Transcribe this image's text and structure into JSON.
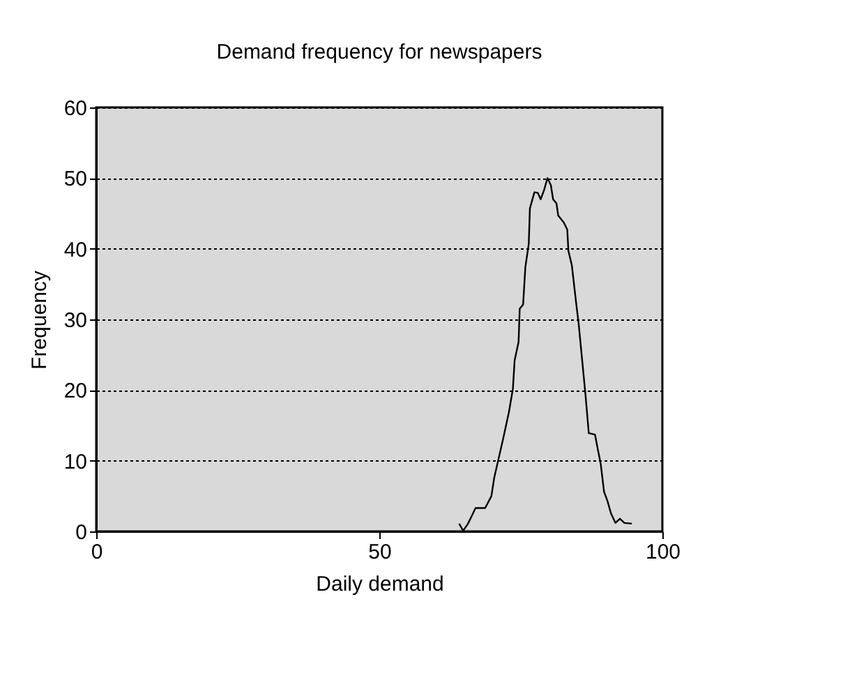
{
  "chart_data": {
    "type": "line",
    "title": "Demand frequency for newspapers",
    "xlabel": "Daily demand",
    "ylabel": "Frequency",
    "x": [
      64.1,
      64.8,
      65.6,
      66.4,
      67.0,
      68.7,
      69.8,
      70.3,
      70.9,
      71.9,
      72.9,
      73.6,
      73.9,
      74.6,
      74.8,
      75.4,
      75.8,
      76.4,
      76.6,
      77.4,
      78.0,
      78.5,
      79.1,
      79.7,
      80.3,
      80.7,
      81.3,
      81.6,
      82.6,
      83.2,
      83.4,
      84.0,
      84.8,
      85.2,
      86.0,
      86.4,
      87.0,
      88.1,
      88.6,
      89.1,
      89.7,
      90.3,
      90.9,
      91.7,
      92.5,
      93.3,
      94.6
    ],
    "series": [
      {
        "color": "#000000",
        "values": [
          1.1,
          0.1,
          1.0,
          2.3,
          3.3,
          3.3,
          5.0,
          7.6,
          9.7,
          13.2,
          16.9,
          20.2,
          24.2,
          26.8,
          31.5,
          32.1,
          37.4,
          40.7,
          45.7,
          48.0,
          47.9,
          47.0,
          48.3,
          50.0,
          49.0,
          47.0,
          46.4,
          44.7,
          43.7,
          42.7,
          39.7,
          37.7,
          32.1,
          29.5,
          22.8,
          19.5,
          13.9,
          13.7,
          11.6,
          9.6,
          5.6,
          4.3,
          2.6,
          1.2,
          1.8,
          1.2,
          1.1
        ]
      }
    ],
    "xlim": [
      0,
      100
    ],
    "xticks": [
      0,
      50,
      100
    ],
    "ylim": [
      0,
      60
    ],
    "yticks": [
      0,
      10,
      20,
      30,
      40,
      50,
      60
    ],
    "grid": "y",
    "legend": false,
    "marker": "none",
    "line_style": "solid"
  }
}
